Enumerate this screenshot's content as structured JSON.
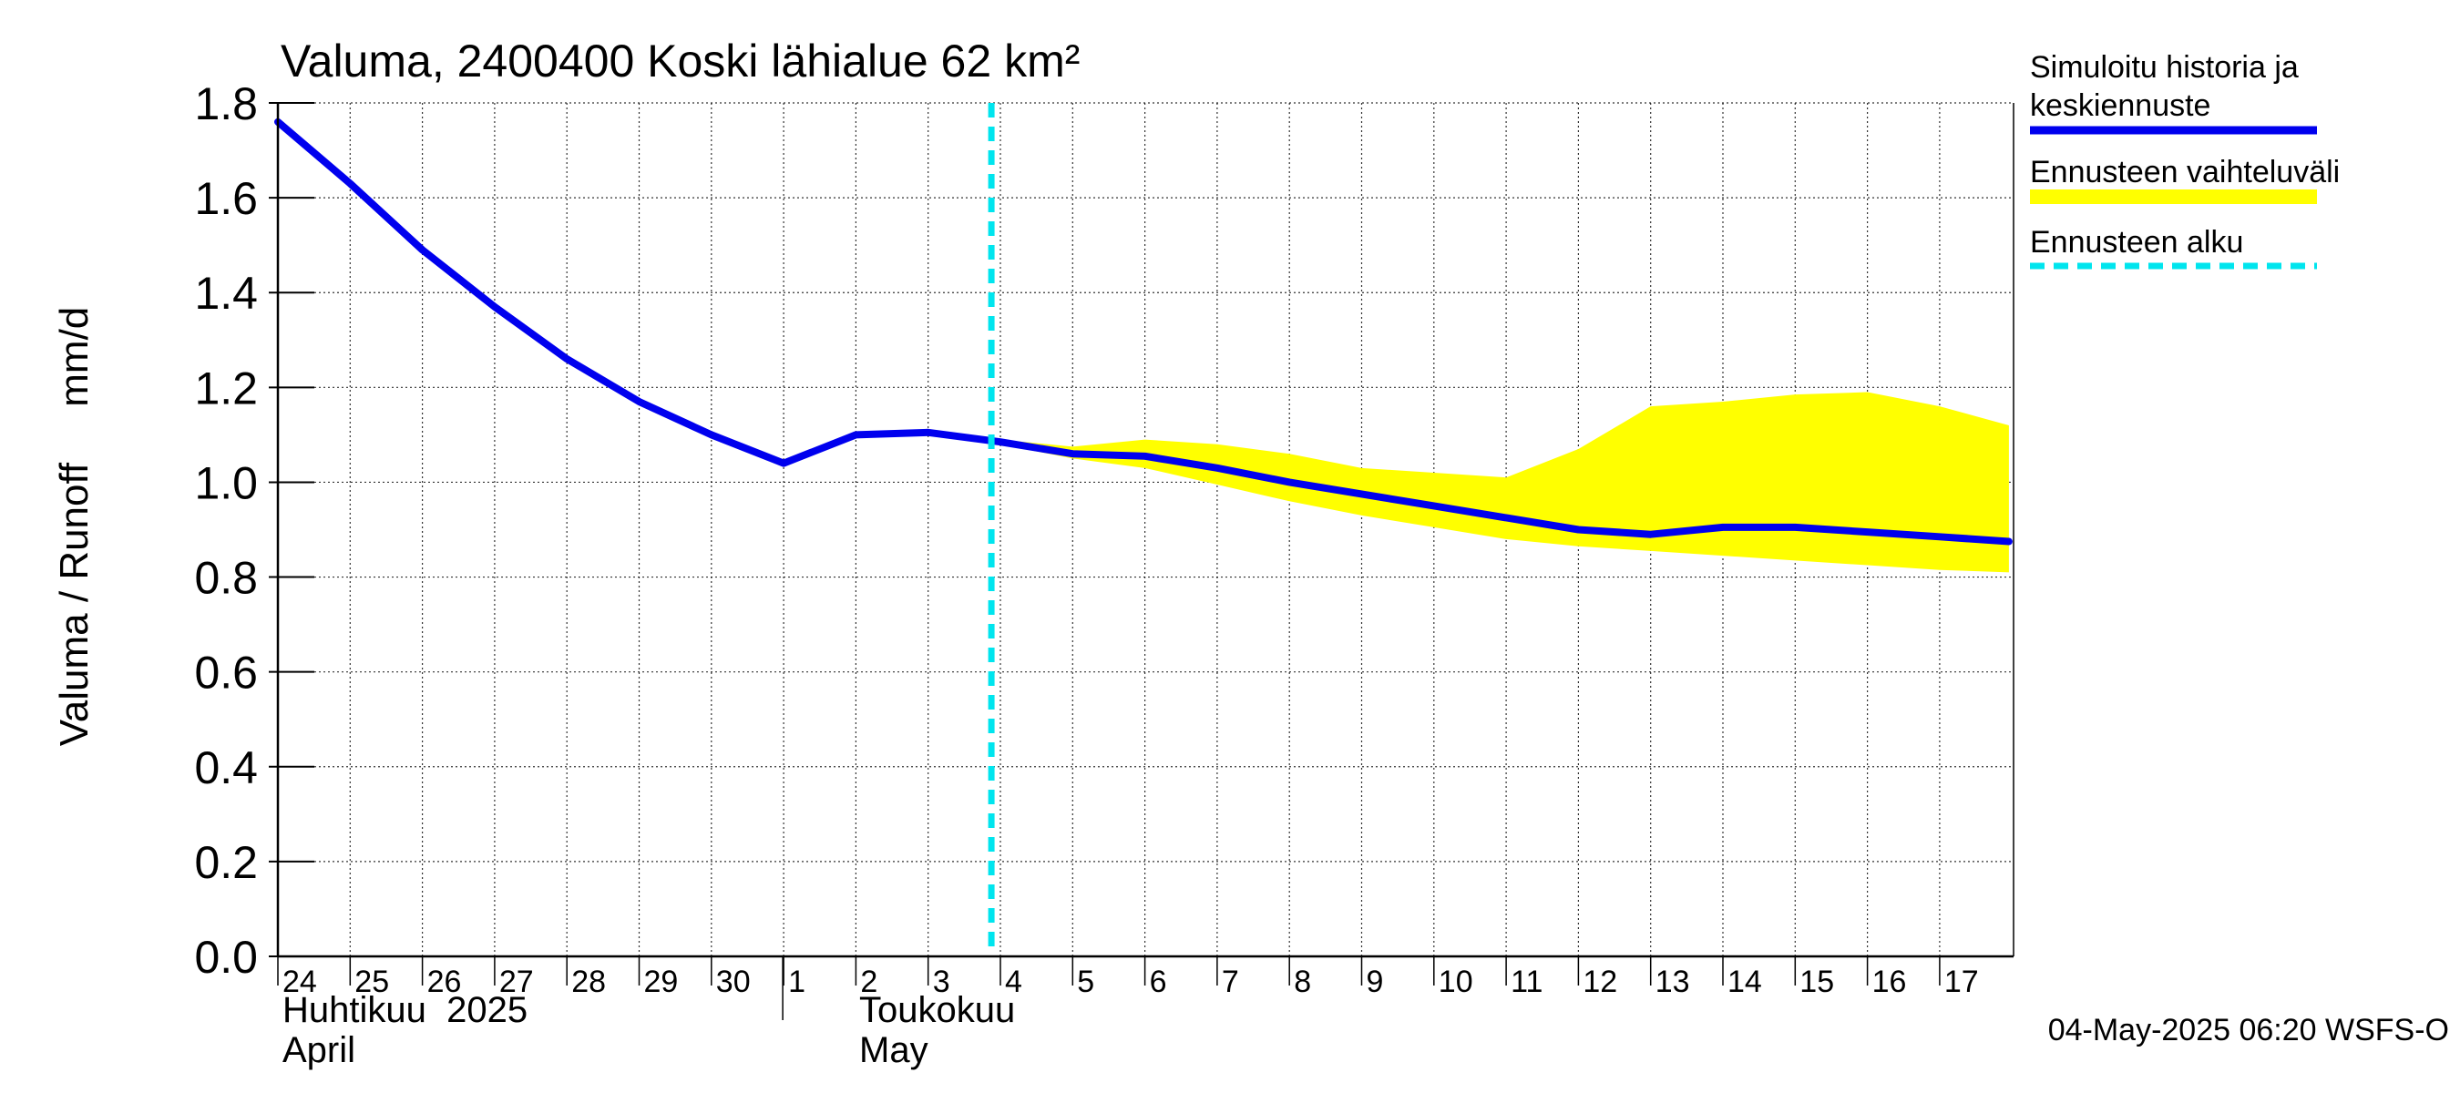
{
  "chart_data": {
    "type": "line",
    "title": "Valuma, 2400400 Koski lähialue 62 km²",
    "ylabel": "Valuma / Runoff     mm/d",
    "ylim": [
      0.0,
      1.8
    ],
    "yticks": [
      "0.0",
      "0.2",
      "0.4",
      "0.6",
      "0.8",
      "1.0",
      "1.2",
      "1.4",
      "1.6",
      "1.8"
    ],
    "x_day_labels": [
      "24",
      "25",
      "26",
      "27",
      "28",
      "29",
      "30",
      "1",
      "2",
      "3",
      "4",
      "5",
      "6",
      "7",
      "8",
      "9",
      "10",
      "11",
      "12",
      "13",
      "14",
      "15",
      "16",
      "17"
    ],
    "month_labels": [
      {
        "fi": "Huhtikuu  2025",
        "en": "April"
      },
      {
        "fi": "Toukokuu",
        "en": "May"
      }
    ],
    "grid": true,
    "legend_position": "right",
    "forecast_start": "2025-05-03 21:00",
    "series": [
      {
        "name": "Simuloitu historia ja keskiennuste",
        "color": "#0000ee",
        "points": [
          [
            "2025-04-24 00:00",
            1.76
          ],
          [
            "2025-04-25 00:00",
            1.63
          ],
          [
            "2025-04-26 00:00",
            1.49
          ],
          [
            "2025-04-27 00:00",
            1.37
          ],
          [
            "2025-04-28 00:00",
            1.26
          ],
          [
            "2025-04-29 00:00",
            1.17
          ],
          [
            "2025-04-30 00:00",
            1.1
          ],
          [
            "2025-05-01 00:00",
            1.04
          ],
          [
            "2025-05-02 00:00",
            1.1
          ],
          [
            "2025-05-03 00:00",
            1.105
          ],
          [
            "2025-05-04 00:00",
            1.085
          ],
          [
            "2025-05-05 00:00",
            1.06
          ],
          [
            "2025-05-06 00:00",
            1.055
          ],
          [
            "2025-05-07 00:00",
            1.03
          ],
          [
            "2025-05-08 00:00",
            1.0
          ],
          [
            "2025-05-09 00:00",
            0.975
          ],
          [
            "2025-05-10 00:00",
            0.95
          ],
          [
            "2025-05-11 00:00",
            0.925
          ],
          [
            "2025-05-12 00:00",
            0.9
          ],
          [
            "2025-05-13 00:00",
            0.89
          ],
          [
            "2025-05-14 00:00",
            0.905
          ],
          [
            "2025-05-15 00:00",
            0.905
          ],
          [
            "2025-05-16 00:00",
            0.895
          ],
          [
            "2025-05-17 00:00",
            0.885
          ],
          [
            "2025-05-17 23:00",
            0.875
          ]
        ]
      },
      {
        "name": "Ennusteen vaihteluväli",
        "color": "#ffff00",
        "upper": [
          [
            "2025-05-04 00:00",
            1.09
          ],
          [
            "2025-05-05 00:00",
            1.075
          ],
          [
            "2025-05-06 00:00",
            1.09
          ],
          [
            "2025-05-07 00:00",
            1.08
          ],
          [
            "2025-05-08 00:00",
            1.06
          ],
          [
            "2025-05-09 00:00",
            1.03
          ],
          [
            "2025-05-10 00:00",
            1.02
          ],
          [
            "2025-05-11 00:00",
            1.01
          ],
          [
            "2025-05-12 00:00",
            1.07
          ],
          [
            "2025-05-13 00:00",
            1.16
          ],
          [
            "2025-05-14 00:00",
            1.17
          ],
          [
            "2025-05-15 00:00",
            1.185
          ],
          [
            "2025-05-16 00:00",
            1.19
          ],
          [
            "2025-05-17 00:00",
            1.16
          ],
          [
            "2025-05-17 23:00",
            1.12
          ]
        ],
        "lower": [
          [
            "2025-05-04 00:00",
            1.08
          ],
          [
            "2025-05-05 00:00",
            1.05
          ],
          [
            "2025-05-06 00:00",
            1.03
          ],
          [
            "2025-05-07 00:00",
            0.995
          ],
          [
            "2025-05-08 00:00",
            0.96
          ],
          [
            "2025-05-09 00:00",
            0.93
          ],
          [
            "2025-05-10 00:00",
            0.905
          ],
          [
            "2025-05-11 00:00",
            0.88
          ],
          [
            "2025-05-12 00:00",
            0.865
          ],
          [
            "2025-05-13 00:00",
            0.855
          ],
          [
            "2025-05-14 00:00",
            0.845
          ],
          [
            "2025-05-15 00:00",
            0.835
          ],
          [
            "2025-05-16 00:00",
            0.825
          ],
          [
            "2025-05-17 00:00",
            0.815
          ],
          [
            "2025-05-17 23:00",
            0.81
          ]
        ]
      },
      {
        "name": "Ennusteen alku",
        "color": "#00e5ee"
      }
    ]
  },
  "footer": {
    "timestamp": "04-May-2025 06:20 WSFS-O"
  }
}
